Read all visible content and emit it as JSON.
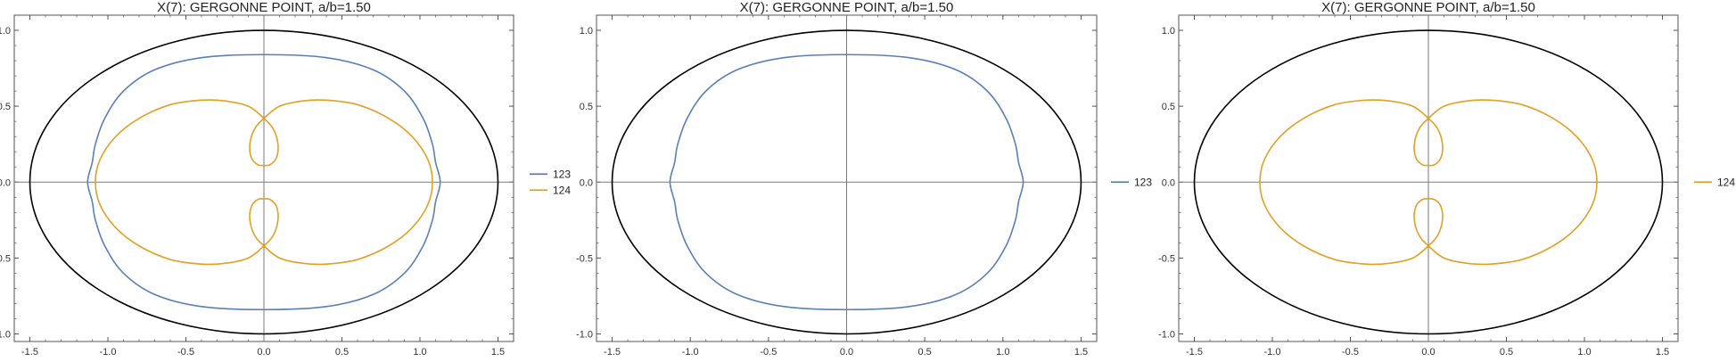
{
  "colors": {
    "ellipse": "#000000",
    "series_123": "#5b7fb4",
    "series_124": "#e0a126",
    "axes": "#7a7a7a",
    "frame": "#555555"
  },
  "chart_data": [
    {
      "type": "line",
      "title": "X(7): GERGONNE POINT, a/b=1.50",
      "xlim": [
        -1.6,
        1.6
      ],
      "ylim": [
        -1.05,
        1.1
      ],
      "xticks": [
        -1.5,
        -1.0,
        -0.5,
        0.0,
        0.5,
        1.0,
        1.5
      ],
      "xtick_labels": [
        "-1.5",
        "-1.0",
        "-0.5",
        "0.0",
        "0.5",
        "1.0",
        "1.5"
      ],
      "yticks": [
        -1.0,
        -0.5,
        0.0,
        0.5,
        1.0
      ],
      "ytick_labels": [
        "-1.0",
        "-0.5",
        "0.0",
        "0.5",
        "1.0"
      ],
      "grid": false,
      "legend": "right",
      "series": [
        {
          "name": "123",
          "kind": "closed_curve",
          "points": [
            [
              0.0,
              0.84
            ],
            [
              0.4,
              0.82
            ],
            [
              0.7,
              0.74
            ],
            [
              0.9,
              0.6
            ],
            [
              1.02,
              0.42
            ],
            [
              1.08,
              0.25
            ],
            [
              1.1,
              0.13
            ],
            [
              1.13,
              0.0
            ],
            [
              1.1,
              -0.13
            ],
            [
              1.08,
              -0.25
            ],
            [
              1.02,
              -0.42
            ],
            [
              0.9,
              -0.6
            ],
            [
              0.7,
              -0.74
            ],
            [
              0.4,
              -0.82
            ],
            [
              0.0,
              -0.84
            ],
            [
              -0.4,
              -0.82
            ],
            [
              -0.7,
              -0.74
            ],
            [
              -0.9,
              -0.6
            ],
            [
              -1.02,
              -0.42
            ],
            [
              -1.08,
              -0.25
            ],
            [
              -1.1,
              -0.13
            ],
            [
              -1.13,
              0.0
            ],
            [
              -1.1,
              0.13
            ],
            [
              -1.08,
              0.25
            ],
            [
              -1.02,
              0.42
            ],
            [
              -0.9,
              0.6
            ],
            [
              -0.7,
              0.74
            ],
            [
              -0.4,
              0.82
            ]
          ]
        },
        {
          "name": "124",
          "kind": "closed_curve",
          "points": [
            [
              0.0,
              0.42
            ],
            [
              0.1,
              0.5
            ],
            [
              0.25,
              0.535
            ],
            [
              0.4,
              0.54
            ],
            [
              0.6,
              0.51
            ],
            [
              0.8,
              0.42
            ],
            [
              0.95,
              0.3
            ],
            [
              1.05,
              0.15
            ],
            [
              1.08,
              0.0
            ],
            [
              1.05,
              -0.15
            ],
            [
              0.95,
              -0.3
            ],
            [
              0.8,
              -0.42
            ],
            [
              0.6,
              -0.51
            ],
            [
              0.4,
              -0.54
            ],
            [
              0.25,
              -0.535
            ],
            [
              0.1,
              -0.5
            ],
            [
              0.0,
              -0.42
            ],
            [
              -0.06,
              -0.35
            ],
            [
              -0.09,
              -0.25
            ],
            [
              -0.08,
              -0.16
            ],
            [
              -0.04,
              -0.115
            ],
            [
              0.0,
              -0.11
            ],
            [
              0.04,
              -0.115
            ],
            [
              0.08,
              -0.16
            ],
            [
              0.09,
              -0.25
            ],
            [
              0.06,
              -0.35
            ],
            [
              0.0,
              -0.42
            ],
            [
              -0.1,
              -0.5
            ],
            [
              -0.25,
              -0.535
            ],
            [
              -0.4,
              -0.54
            ],
            [
              -0.6,
              -0.51
            ],
            [
              -0.8,
              -0.42
            ],
            [
              -0.95,
              -0.3
            ],
            [
              -1.05,
              -0.15
            ],
            [
              -1.08,
              0.0
            ],
            [
              -1.05,
              0.15
            ],
            [
              -0.95,
              0.3
            ],
            [
              -0.8,
              0.42
            ],
            [
              -0.6,
              0.51
            ],
            [
              -0.4,
              0.54
            ],
            [
              -0.25,
              0.535
            ],
            [
              -0.1,
              0.5
            ],
            [
              0.0,
              0.42
            ],
            [
              0.06,
              0.35
            ],
            [
              0.09,
              0.25
            ],
            [
              0.08,
              0.16
            ],
            [
              0.04,
              0.115
            ],
            [
              0.0,
              0.11
            ],
            [
              -0.04,
              0.115
            ],
            [
              -0.08,
              0.16
            ],
            [
              -0.09,
              0.25
            ],
            [
              -0.06,
              0.35
            ]
          ]
        }
      ],
      "reference_ellipse": {
        "a": 1.5,
        "b": 1.0
      }
    },
    {
      "type": "line",
      "title": "X(7): GERGONNE POINT, a/b=1.50",
      "xlim": [
        -1.6,
        1.6
      ],
      "ylim": [
        -1.05,
        1.1
      ],
      "xticks": [
        -1.5,
        -1.0,
        -0.5,
        0.0,
        0.5,
        1.0,
        1.5
      ],
      "xtick_labels": [
        "-1.5",
        "-1.0",
        "-0.5",
        "0.0",
        "0.5",
        "1.0",
        "1.5"
      ],
      "yticks": [
        -1.0,
        -0.5,
        0.0,
        0.5,
        1.0
      ],
      "ytick_labels": [
        "-1.0",
        "-0.5",
        "0.0",
        "0.5",
        "1.0"
      ],
      "grid": false,
      "legend": "right",
      "series": [
        {
          "name": "123",
          "kind": "closed_curve",
          "points": [
            [
              0.0,
              0.84
            ],
            [
              0.4,
              0.82
            ],
            [
              0.7,
              0.74
            ],
            [
              0.9,
              0.6
            ],
            [
              1.02,
              0.42
            ],
            [
              1.08,
              0.25
            ],
            [
              1.1,
              0.13
            ],
            [
              1.13,
              0.0
            ],
            [
              1.1,
              -0.13
            ],
            [
              1.08,
              -0.25
            ],
            [
              1.02,
              -0.42
            ],
            [
              0.9,
              -0.6
            ],
            [
              0.7,
              -0.74
            ],
            [
              0.4,
              -0.82
            ],
            [
              0.0,
              -0.84
            ],
            [
              -0.4,
              -0.82
            ],
            [
              -0.7,
              -0.74
            ],
            [
              -0.9,
              -0.6
            ],
            [
              -1.02,
              -0.42
            ],
            [
              -1.08,
              -0.25
            ],
            [
              -1.1,
              -0.13
            ],
            [
              -1.13,
              0.0
            ],
            [
              -1.1,
              0.13
            ],
            [
              -1.08,
              0.25
            ],
            [
              -1.02,
              0.42
            ],
            [
              -0.9,
              0.6
            ],
            [
              -0.7,
              0.74
            ],
            [
              -0.4,
              0.82
            ]
          ]
        }
      ],
      "reference_ellipse": {
        "a": 1.5,
        "b": 1.0
      }
    },
    {
      "type": "line",
      "title": "X(7): GERGONNE POINT, a/b=1.50",
      "xlim": [
        -1.6,
        1.6
      ],
      "ylim": [
        -1.05,
        1.1
      ],
      "xticks": [
        -1.5,
        -1.0,
        -0.5,
        0.0,
        0.5,
        1.0,
        1.5
      ],
      "xtick_labels": [
        "-1.5",
        "-1.0",
        "-0.5",
        "0.0",
        "0.5",
        "1.0",
        "1.5"
      ],
      "yticks": [
        -1.0,
        -0.5,
        0.0,
        0.5,
        1.0
      ],
      "ytick_labels": [
        "-1.0",
        "-0.5",
        "0.0",
        "0.5",
        "1.0"
      ],
      "grid": false,
      "legend": "right",
      "series": [
        {
          "name": "124",
          "kind": "closed_curve",
          "points": [
            [
              0.0,
              0.42
            ],
            [
              0.1,
              0.5
            ],
            [
              0.25,
              0.535
            ],
            [
              0.4,
              0.54
            ],
            [
              0.6,
              0.51
            ],
            [
              0.8,
              0.42
            ],
            [
              0.95,
              0.3
            ],
            [
              1.05,
              0.15
            ],
            [
              1.08,
              0.0
            ],
            [
              1.05,
              -0.15
            ],
            [
              0.95,
              -0.3
            ],
            [
              0.8,
              -0.42
            ],
            [
              0.6,
              -0.51
            ],
            [
              0.4,
              -0.54
            ],
            [
              0.25,
              -0.535
            ],
            [
              0.1,
              -0.5
            ],
            [
              0.0,
              -0.42
            ],
            [
              -0.06,
              -0.35
            ],
            [
              -0.09,
              -0.25
            ],
            [
              -0.08,
              -0.16
            ],
            [
              -0.04,
              -0.115
            ],
            [
              0.0,
              -0.11
            ],
            [
              0.04,
              -0.115
            ],
            [
              0.08,
              -0.16
            ],
            [
              0.09,
              -0.25
            ],
            [
              0.06,
              -0.35
            ],
            [
              0.0,
              -0.42
            ],
            [
              -0.1,
              -0.5
            ],
            [
              -0.25,
              -0.535
            ],
            [
              -0.4,
              -0.54
            ],
            [
              -0.6,
              -0.51
            ],
            [
              -0.8,
              -0.42
            ],
            [
              -0.95,
              -0.3
            ],
            [
              -1.05,
              -0.15
            ],
            [
              -1.08,
              0.0
            ],
            [
              -1.05,
              0.15
            ],
            [
              -0.95,
              0.3
            ],
            [
              -0.8,
              0.42
            ],
            [
              -0.6,
              0.51
            ],
            [
              -0.4,
              0.54
            ],
            [
              -0.25,
              0.535
            ],
            [
              -0.1,
              0.5
            ],
            [
              0.0,
              0.42
            ],
            [
              0.06,
              0.35
            ],
            [
              0.09,
              0.25
            ],
            [
              0.08,
              0.16
            ],
            [
              0.04,
              0.115
            ],
            [
              0.0,
              0.11
            ],
            [
              -0.04,
              0.115
            ],
            [
              -0.08,
              0.16
            ],
            [
              -0.09,
              0.25
            ],
            [
              -0.06,
              0.35
            ]
          ]
        }
      ],
      "reference_ellipse": {
        "a": 1.5,
        "b": 1.0
      }
    }
  ]
}
